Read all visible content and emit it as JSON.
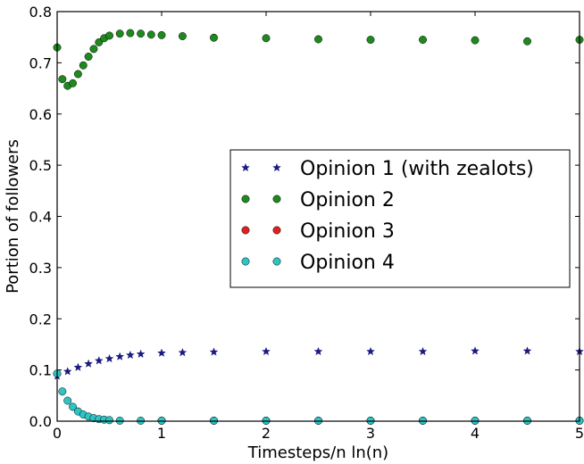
{
  "chart_data": {
    "type": "scatter",
    "xlabel": "Timesteps/n ln(n)",
    "ylabel": "Portion of followers",
    "xlim": [
      0,
      5
    ],
    "ylim": [
      0,
      0.8
    ],
    "xticks": [
      "0",
      "1",
      "2",
      "3",
      "4",
      "5"
    ],
    "yticks": [
      "0.0",
      "0.1",
      "0.2",
      "0.3",
      "0.4",
      "0.5",
      "0.6",
      "0.7",
      "0.8"
    ],
    "legend_position": "center-right",
    "grid": false,
    "series": [
      {
        "name": "Opinion 1 (with zealots)",
        "marker": "star",
        "color": "#1a1a80",
        "x": [
          0,
          0.1,
          0.2,
          0.3,
          0.4,
          0.5,
          0.6,
          0.7,
          0.8,
          1.0,
          1.2,
          1.5,
          2.0,
          2.5,
          3.0,
          3.5,
          4.0,
          4.5,
          5.0
        ],
        "y": [
          0.088,
          0.097,
          0.105,
          0.112,
          0.118,
          0.122,
          0.126,
          0.129,
          0.131,
          0.133,
          0.134,
          0.135,
          0.136,
          0.136,
          0.136,
          0.136,
          0.137,
          0.137,
          0.136
        ]
      },
      {
        "name": "Opinion 2",
        "marker": "circle",
        "color": "#1e8a1e",
        "x": [
          0,
          0.05,
          0.1,
          0.15,
          0.2,
          0.25,
          0.3,
          0.35,
          0.4,
          0.45,
          0.5,
          0.6,
          0.7,
          0.8,
          0.9,
          1.0,
          1.2,
          1.5,
          2.0,
          2.5,
          3.0,
          3.5,
          4.0,
          4.5,
          5.0
        ],
        "y": [
          0.73,
          0.668,
          0.655,
          0.66,
          0.678,
          0.695,
          0.712,
          0.727,
          0.74,
          0.748,
          0.753,
          0.757,
          0.758,
          0.757,
          0.755,
          0.754,
          0.752,
          0.749,
          0.748,
          0.746,
          0.745,
          0.745,
          0.744,
          0.742,
          0.745
        ]
      },
      {
        "name": "Opinion 3",
        "marker": "circle",
        "color": "#e02020",
        "x": [
          1.0,
          1.5,
          2.0,
          2.5,
          3.0,
          3.5,
          4.0,
          4.5,
          5.0
        ],
        "y": [
          0.001,
          0.001,
          0.001,
          0.001,
          0.001,
          0.001,
          0.001,
          0.001,
          0.001
        ]
      },
      {
        "name": "Opinion 4",
        "marker": "circle",
        "color": "#2ec4c4",
        "x": [
          0,
          0.05,
          0.1,
          0.15,
          0.2,
          0.25,
          0.3,
          0.35,
          0.4,
          0.45,
          0.5,
          0.6,
          0.8,
          1.0,
          1.5,
          2.0,
          2.5,
          3.0,
          3.5,
          4.0,
          4.5,
          5.0
        ],
        "y": [
          0.093,
          0.058,
          0.04,
          0.028,
          0.019,
          0.013,
          0.009,
          0.006,
          0.004,
          0.003,
          0.002,
          0.001,
          0.001,
          0.001,
          0.001,
          0.001,
          0.001,
          0.001,
          0.001,
          0.001,
          0.001,
          0.001
        ]
      }
    ]
  }
}
